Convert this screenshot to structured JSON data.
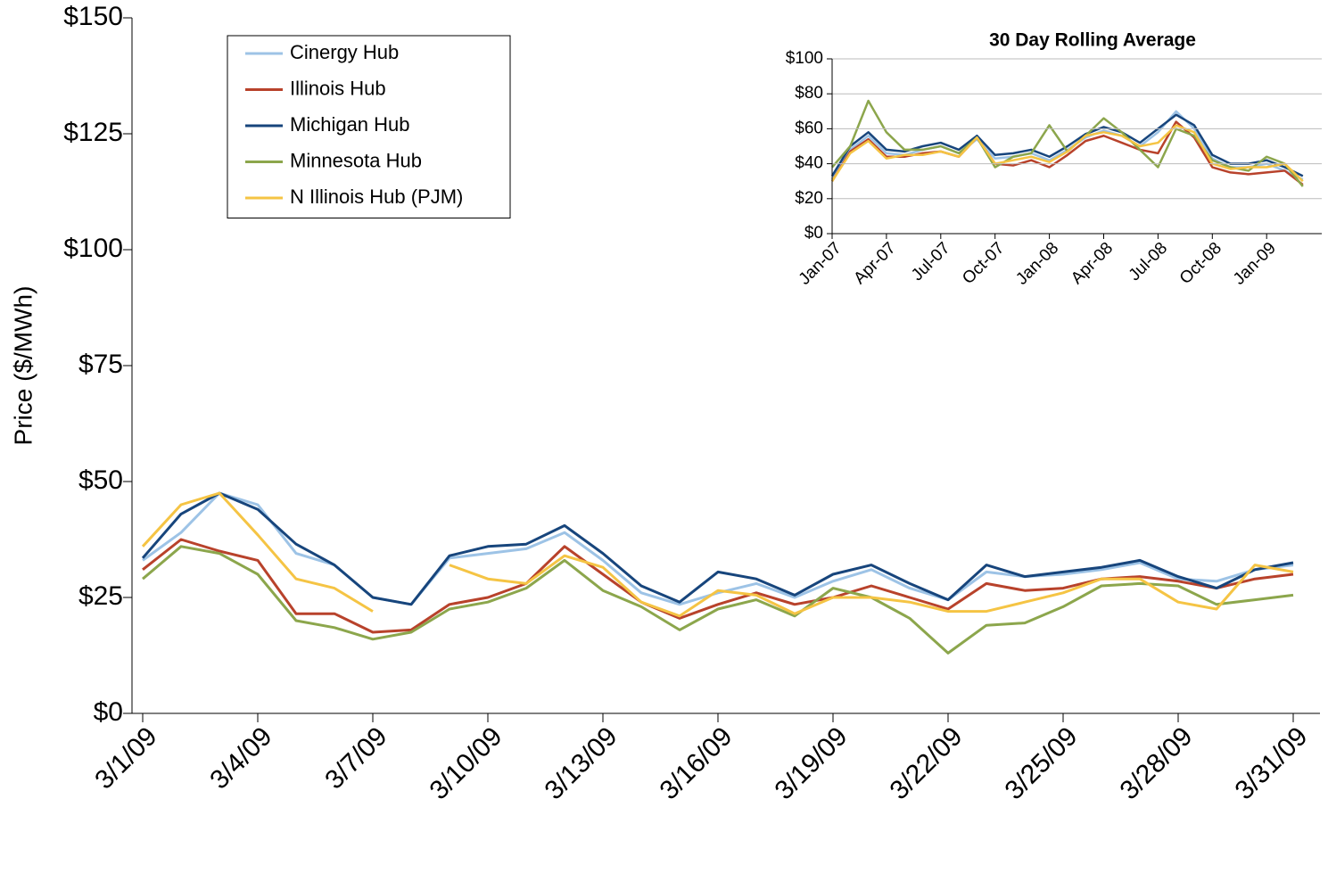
{
  "chart_data": [
    {
      "type": "line",
      "y_label": "Price ($/MWh)",
      "categories": [
        "3/1/09",
        null,
        null,
        "3/4/09",
        null,
        null,
        "3/7/09",
        null,
        null,
        "3/10/09",
        null,
        null,
        "3/13/09",
        null,
        null,
        "3/16/09",
        null,
        null,
        "3/19/09",
        null,
        null,
        "3/22/09",
        null,
        null,
        "3/25/09",
        null,
        null,
        "3/28/09",
        null,
        null,
        "3/31/09"
      ],
      "ylim": [
        0,
        150
      ],
      "yticks": [
        {
          "value": 0,
          "label": "$0"
        },
        {
          "value": 25,
          "label": "$25"
        },
        {
          "value": 50,
          "label": "$50"
        },
        {
          "value": 75,
          "label": "$75"
        },
        {
          "value": 100,
          "label": "$100"
        },
        {
          "value": 125,
          "label": "$125"
        },
        {
          "value": 150,
          "label": "$150"
        }
      ],
      "grid": false,
      "legend": "top-left",
      "series": [
        {
          "name": "Cinergy Hub",
          "color": "#9dc3e6",
          "values": [
            33,
            39,
            47.5,
            45,
            34.5,
            32,
            25,
            23.5,
            33.5,
            34.5,
            35.5,
            39,
            33,
            26,
            23.5,
            26,
            28,
            25,
            28.5,
            31,
            27,
            24.5,
            30.5,
            29.5,
            30,
            31,
            32.5,
            29,
            28.5,
            31,
            32
          ]
        },
        {
          "name": "Illinois Hub",
          "color": "#b8422b",
          "values": [
            31,
            37.5,
            35,
            33,
            21.5,
            21.5,
            17.5,
            18,
            23.5,
            25,
            28,
            36,
            30,
            24,
            20.5,
            23.5,
            26,
            23.5,
            25,
            27.5,
            25,
            22.5,
            28,
            26.5,
            27,
            29,
            29.5,
            28.5,
            27,
            29,
            30
          ]
        },
        {
          "name": "Michigan Hub",
          "color": "#17457c",
          "values": [
            33.5,
            43,
            47.5,
            44,
            36.5,
            32,
            25,
            23.5,
            34,
            36,
            36.5,
            40.5,
            34.5,
            27.5,
            24,
            30.5,
            29,
            25.5,
            30,
            32,
            28,
            24.5,
            32,
            29.5,
            30.5,
            31.5,
            33,
            29.5,
            27,
            31,
            32.5
          ]
        },
        {
          "name": "Minnesota Hub",
          "color": "#8ca64c",
          "values": [
            29,
            36,
            34.5,
            30,
            20,
            18.5,
            16,
            17.5,
            22.5,
            24,
            27,
            33,
            26.5,
            23,
            18,
            22.5,
            24.5,
            21,
            27,
            25,
            20.5,
            13,
            19,
            19.5,
            23,
            27.5,
            28,
            27.5,
            23.5,
            24.5,
            25.5
          ]
        },
        {
          "name": "N Illinois Hub (PJM)",
          "color": "#f5c444",
          "values": [
            36,
            45,
            47.5,
            38.5,
            29,
            27,
            22,
            null,
            32,
            29,
            28,
            34,
            31.5,
            24,
            21,
            26.5,
            25.5,
            21.5,
            25,
            25,
            24,
            22,
            22,
            24,
            26,
            29,
            29,
            24,
            22.5,
            32,
            30.5
          ]
        }
      ]
    },
    {
      "type": "line",
      "title": "30 Day Rolling Average",
      "categories": [
        "Jan-07",
        null,
        null,
        "Apr-07",
        null,
        null,
        "Jul-07",
        null,
        null,
        "Oct-07",
        null,
        null,
        "Jan-08",
        null,
        null,
        "Apr-08",
        null,
        null,
        "Jul-08",
        null,
        null,
        "Oct-08",
        null,
        null,
        "Jan-09",
        null,
        null
      ],
      "ylim": [
        0,
        100
      ],
      "yticks": [
        {
          "value": 0,
          "label": "$0"
        },
        {
          "value": 20,
          "label": "$20"
        },
        {
          "value": 40,
          "label": "$40"
        },
        {
          "value": 60,
          "label": "$60"
        },
        {
          "value": 80,
          "label": "$80"
        },
        {
          "value": 100,
          "label": "$100"
        }
      ],
      "grid": true,
      "series": [
        {
          "color": "#9dc3e6",
          "values": [
            31,
            48,
            56,
            46,
            45,
            48,
            50,
            46,
            54,
            43,
            44,
            46,
            42,
            48,
            55,
            59,
            56,
            50,
            58,
            70,
            60,
            43,
            38,
            38,
            40,
            36,
            31
          ]
        },
        {
          "color": "#b8422b",
          "values": [
            30,
            47,
            54,
            44,
            44,
            46,
            47,
            44,
            55,
            40,
            39,
            42,
            38,
            45,
            53,
            56,
            52,
            48,
            46,
            64,
            55,
            38,
            35,
            34,
            35,
            36,
            28
          ]
        },
        {
          "color": "#17457c",
          "values": [
            33,
            50,
            58,
            48,
            47,
            50,
            52,
            48,
            56,
            45,
            46,
            48,
            44,
            50,
            57,
            61,
            58,
            52,
            60,
            68,
            62,
            45,
            40,
            40,
            42,
            38,
            33
          ]
        },
        {
          "color": "#8ca64c",
          "values": [
            38,
            50,
            76,
            58,
            48,
            48,
            50,
            46,
            55,
            38,
            44,
            46,
            62,
            47,
            56,
            66,
            58,
            48,
            38,
            60,
            56,
            42,
            38,
            36,
            44,
            40,
            27
          ]
        },
        {
          "color": "#f5c444",
          "values": [
            30,
            46,
            53,
            43,
            45,
            45,
            47,
            44,
            55,
            40,
            42,
            44,
            41,
            47,
            56,
            58,
            56,
            50,
            52,
            62,
            58,
            40,
            37,
            38,
            38,
            40,
            30
          ]
        }
      ]
    }
  ]
}
